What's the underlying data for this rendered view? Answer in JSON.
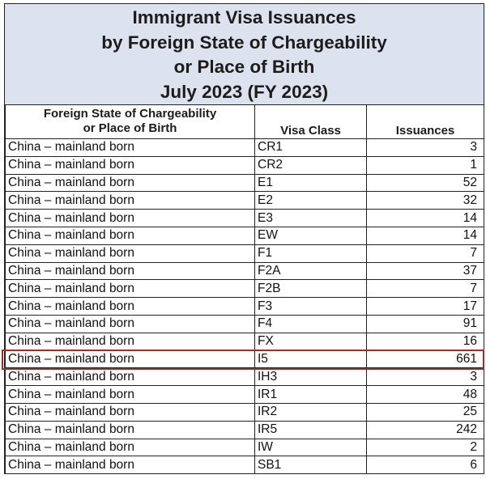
{
  "title_lines": [
    "Immigrant Visa Issuances",
    "by Foreign State of Chargeability",
    "or Place of Birth",
    "July 2023 (FY 2023)"
  ],
  "columns": {
    "state_line1": "Foreign State of Chargeability",
    "state_line2": "or Place of Birth",
    "visa_class": "Visa Class",
    "issuances": "Issuances"
  },
  "rows": [
    {
      "state": "China – mainland born",
      "visa_class": "CR1",
      "issuances": "3"
    },
    {
      "state": "China – mainland born",
      "visa_class": "CR2",
      "issuances": "1"
    },
    {
      "state": "China – mainland born",
      "visa_class": "E1",
      "issuances": "52"
    },
    {
      "state": "China – mainland born",
      "visa_class": "E2",
      "issuances": "32"
    },
    {
      "state": "China – mainland born",
      "visa_class": "E3",
      "issuances": "14"
    },
    {
      "state": "China – mainland born",
      "visa_class": "EW",
      "issuances": "14"
    },
    {
      "state": "China – mainland born",
      "visa_class": "F1",
      "issuances": "7"
    },
    {
      "state": "China – mainland born",
      "visa_class": "F2A",
      "issuances": "37"
    },
    {
      "state": "China – mainland born",
      "visa_class": "F2B",
      "issuances": "7"
    },
    {
      "state": "China – mainland born",
      "visa_class": "F3",
      "issuances": "17"
    },
    {
      "state": "China – mainland born",
      "visa_class": "F4",
      "issuances": "91"
    },
    {
      "state": "China – mainland born",
      "visa_class": "FX",
      "issuances": "16"
    },
    {
      "state": "China – mainland born",
      "visa_class": "I5",
      "issuances": "661"
    },
    {
      "state": "China – mainland born",
      "visa_class": "IH3",
      "issuances": "3"
    },
    {
      "state": "China – mainland born",
      "visa_class": "IR1",
      "issuances": "48"
    },
    {
      "state": "China – mainland born",
      "visa_class": "IR2",
      "issuances": "25"
    },
    {
      "state": "China – mainland born",
      "visa_class": "IR5",
      "issuances": "242"
    },
    {
      "state": "China – mainland born",
      "visa_class": "IW",
      "issuances": "2"
    },
    {
      "state": "China – mainland born",
      "visa_class": "SB1",
      "issuances": "6"
    }
  ],
  "highlighted_visa_class": "I5",
  "colors": {
    "title_background": "#dde2ef",
    "highlight_border": "#a52a2a",
    "grid": "#222222"
  }
}
